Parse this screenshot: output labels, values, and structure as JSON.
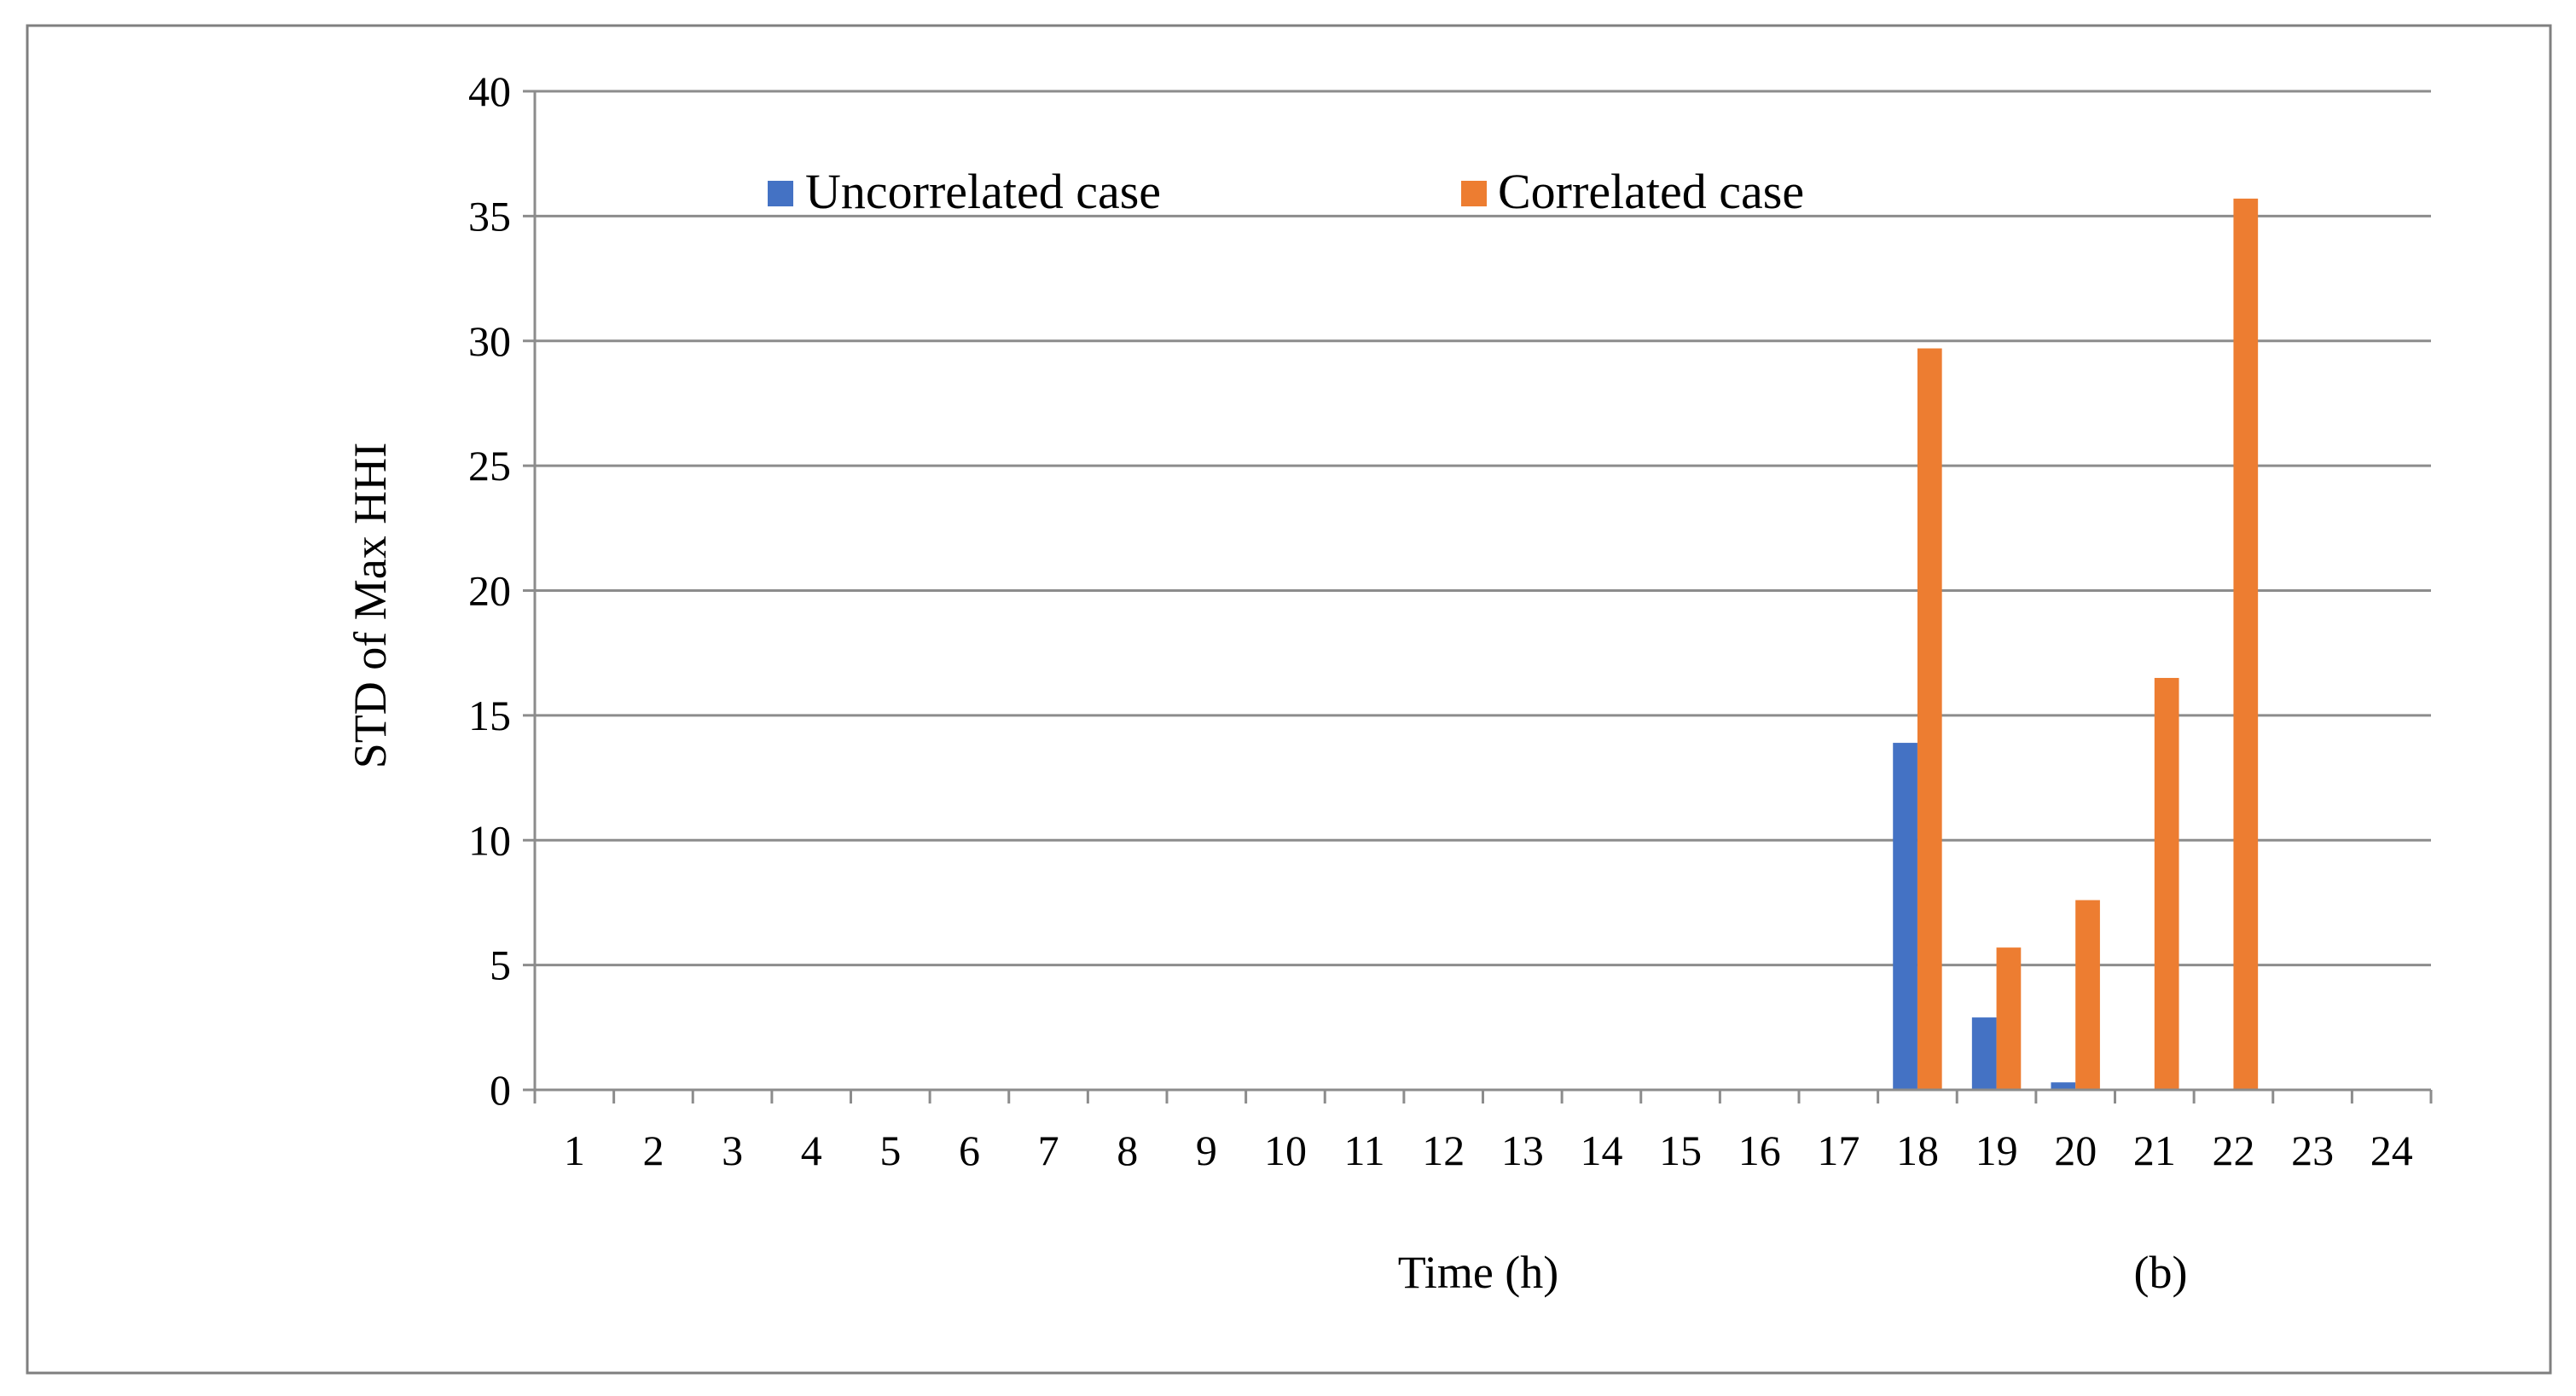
{
  "chart_data": {
    "type": "bar",
    "title": "",
    "xlabel": "Time (h)",
    "ylabel": "STD of Max HHI",
    "panel_label": "(b)",
    "categories": [
      "1",
      "2",
      "3",
      "4",
      "5",
      "6",
      "7",
      "8",
      "9",
      "10",
      "11",
      "12",
      "13",
      "14",
      "15",
      "16",
      "17",
      "18",
      "19",
      "20",
      "21",
      "22",
      "23",
      "24"
    ],
    "series": [
      {
        "name": "Uncorrelated case",
        "color": "#4472c4",
        "values": [
          0,
          0,
          0,
          0,
          0,
          0,
          0,
          0,
          0,
          0,
          0,
          0,
          0,
          0,
          0,
          0,
          0,
          13.9,
          2.9,
          0.3,
          0,
          0,
          0,
          0
        ]
      },
      {
        "name": "Correlated case",
        "color": "#ed7d31",
        "values": [
          0,
          0,
          0,
          0,
          0,
          0,
          0,
          0,
          0,
          0,
          0,
          0,
          0,
          0,
          0,
          0,
          0,
          29.7,
          5.7,
          7.6,
          16.5,
          35.7,
          0,
          0
        ]
      }
    ],
    "ylim": [
      0,
      40
    ],
    "yticks": [
      0,
      5,
      10,
      15,
      20,
      25,
      30,
      35,
      40
    ],
    "grid": true,
    "legend_position": "top"
  }
}
